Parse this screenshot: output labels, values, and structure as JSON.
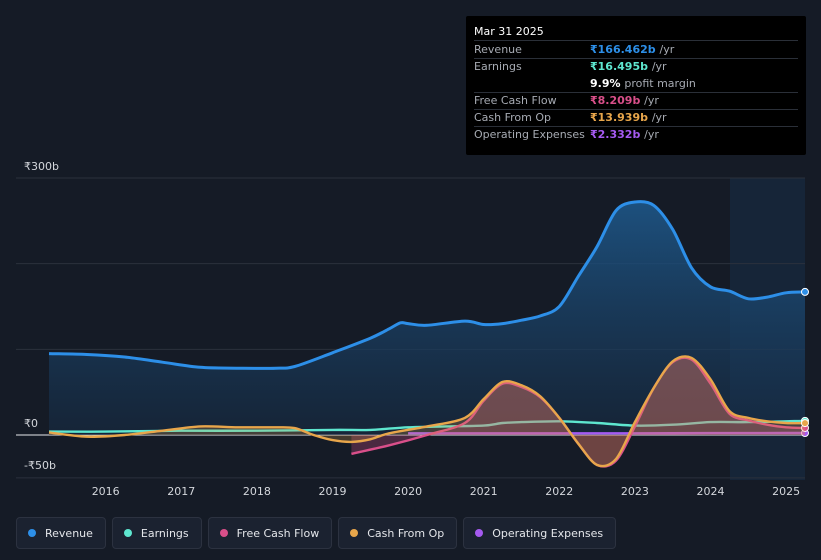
{
  "tooltip": {
    "date": "Mar 31 2025",
    "rows": [
      {
        "label": "Revenue",
        "value": "₹166.462b",
        "unit": "/yr",
        "color": "#2d8fe8"
      },
      {
        "label": "Earnings",
        "value": "₹16.495b",
        "unit": "/yr",
        "color": "#5ee6cf"
      },
      {
        "label": "",
        "value": "9.9%",
        "unit": "profit margin",
        "color": "#ffffff"
      },
      {
        "label": "Free Cash Flow",
        "value": "₹8.209b",
        "unit": "/yr",
        "color": "#d94f8a"
      },
      {
        "label": "Cash From Op",
        "value": "₹13.939b",
        "unit": "/yr",
        "color": "#e8a64b"
      },
      {
        "label": "Operating Expenses",
        "value": "₹2.332b",
        "unit": "/yr",
        "color": "#a55af0"
      }
    ]
  },
  "chart_data": {
    "type": "area",
    "title": "",
    "xlabel": "",
    "ylabel": "",
    "y_tick_labels": {
      "top": "₹300b",
      "zero": "₹0",
      "bottom": "-₹50b"
    },
    "ylim": [
      -50,
      300
    ],
    "xlim": [
      2015.25,
      2025.25
    ],
    "x_ticks": [
      2016,
      2017,
      2018,
      2019,
      2020,
      2021,
      2022,
      2023,
      2024,
      2025
    ],
    "x_tick_labels": [
      "2016",
      "2017",
      "2018",
      "2019",
      "2020",
      "2021",
      "2022",
      "2023",
      "2024",
      "2025"
    ],
    "forecast_start": 2024.25,
    "series": [
      {
        "name": "Revenue",
        "color": "#2d8fe8",
        "fill": true,
        "x": [
          2015.25,
          2015.75,
          2016.25,
          2016.75,
          2017.25,
          2017.75,
          2018.25,
          2018.5,
          2019,
          2019.5,
          2019.75,
          2019.9,
          2020,
          2020.25,
          2020.75,
          2021,
          2021.25,
          2021.5,
          2021.75,
          2022,
          2022.25,
          2022.5,
          2022.75,
          2023,
          2023.25,
          2023.5,
          2023.75,
          2024,
          2024.25,
          2024.5,
          2024.75,
          2025,
          2025.25
        ],
        "y": [
          95,
          94,
          91,
          85,
          79,
          78,
          78,
          80,
          96,
          113,
          124,
          131,
          130,
          128,
          133,
          129,
          130,
          134,
          139,
          150,
          185,
          220,
          262,
          272,
          268,
          240,
          195,
          173,
          168,
          159,
          161,
          166,
          167
        ]
      },
      {
        "name": "Earnings",
        "color": "#5ee6cf",
        "fill": false,
        "x": [
          2015.25,
          2016,
          2017,
          2018,
          2019,
          2019.5,
          2020,
          2020.5,
          2021,
          2021.25,
          2021.5,
          2022,
          2022.5,
          2023,
          2023.5,
          2024,
          2024.5,
          2025,
          2025.25
        ],
        "y": [
          4,
          4,
          5,
          5,
          6,
          6,
          9,
          10,
          11,
          14,
          15,
          16,
          14,
          11,
          12,
          15,
          15,
          16,
          16.5
        ]
      },
      {
        "name": "Free Cash Flow",
        "color": "#d94f8a",
        "fill": true,
        "x": [
          2019.25,
          2019.75,
          2020.25,
          2020.75,
          2021,
          2021.25,
          2021.5,
          2021.75,
          2022,
          2022.25,
          2022.5,
          2022.75,
          2023,
          2023.25,
          2023.5,
          2023.75,
          2024,
          2024.25,
          2024.5,
          2024.75,
          2025,
          2025.25
        ],
        "y": [
          -22,
          -12,
          0,
          14,
          40,
          60,
          56,
          44,
          20,
          -10,
          -35,
          -30,
          10,
          55,
          85,
          88,
          60,
          25,
          17,
          12,
          9,
          8.2
        ]
      },
      {
        "name": "Cash From Op",
        "color": "#e8a64b",
        "fill": true,
        "x": [
          2015.25,
          2015.75,
          2016.25,
          2016.75,
          2017.25,
          2017.75,
          2018.25,
          2018.5,
          2018.75,
          2019,
          2019.25,
          2019.5,
          2019.75,
          2020.25,
          2020.75,
          2021,
          2021.25,
          2021.5,
          2021.75,
          2022,
          2022.25,
          2022.5,
          2022.75,
          2023,
          2023.25,
          2023.5,
          2023.75,
          2024,
          2024.25,
          2024.5,
          2024.75,
          2025,
          2025.25
        ],
        "y": [
          3,
          -2,
          0,
          5,
          10,
          9,
          9,
          8,
          0,
          -6,
          -8,
          -5,
          2,
          10,
          20,
          42,
          62,
          58,
          45,
          20,
          -10,
          -35,
          -28,
          15,
          55,
          86,
          90,
          65,
          28,
          20,
          16,
          14,
          13.9
        ]
      },
      {
        "name": "Operating Expenses",
        "color": "#a55af0",
        "fill": false,
        "x": [
          2020,
          2021,
          2022,
          2023,
          2024,
          2025,
          2025.25
        ],
        "y": [
          2,
          2,
          2,
          2,
          2.2,
          2.3,
          2.3
        ]
      }
    ]
  },
  "legend": [
    {
      "label": "Revenue",
      "color": "#2d8fe8"
    },
    {
      "label": "Earnings",
      "color": "#5ee6cf"
    },
    {
      "label": "Free Cash Flow",
      "color": "#d94f8a"
    },
    {
      "label": "Cash From Op",
      "color": "#e8a64b"
    },
    {
      "label": "Operating Expenses",
      "color": "#a55af0"
    }
  ]
}
